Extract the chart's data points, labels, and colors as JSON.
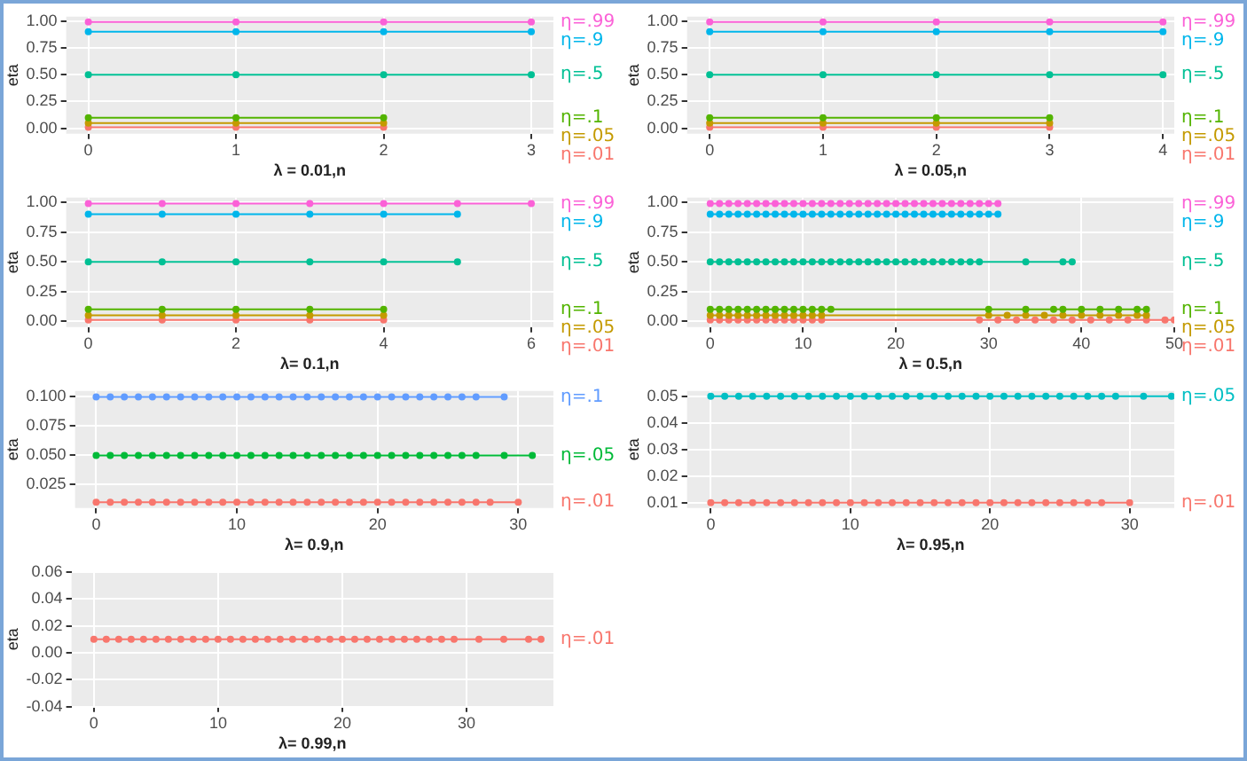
{
  "chart_data": [
    {
      "type": "line",
      "xlabel": "λ = 0.01,n",
      "ylabel": "eta",
      "xlim": [
        -0.15,
        3.15
      ],
      "xticks": [
        0,
        1,
        2,
        3
      ],
      "ylim": [
        -0.05,
        1.04
      ],
      "yticks": [
        {
          "value": 0,
          "label": "0.00"
        },
        {
          "value": 0.25,
          "label": "0.25"
        },
        {
          "value": 0.5,
          "label": "0.50"
        },
        {
          "value": 0.75,
          "label": "0.75"
        },
        {
          "value": 1,
          "label": "1.00"
        }
      ],
      "grid": true,
      "legend": false,
      "marker": "circle",
      "line_style": "solid",
      "series": [
        {
          "name": "η=.99",
          "color": "#fb61d7",
          "x": [
            0,
            1,
            2,
            3
          ],
          "values": [
            0.99,
            0.99,
            0.99,
            0.99
          ]
        },
        {
          "name": "η=.9",
          "color": "#00b6eb",
          "x": [
            0,
            1,
            2,
            3
          ],
          "values": [
            0.9,
            0.9,
            0.9,
            0.9
          ]
        },
        {
          "name": "η=.5",
          "color": "#00c094",
          "x": [
            0,
            1,
            2,
            3
          ],
          "values": [
            0.5,
            0.5,
            0.5,
            0.5
          ]
        },
        {
          "name": "η=.1",
          "color": "#53b400",
          "x": [
            0,
            1,
            2
          ],
          "values": [
            0.1,
            0.1,
            0.1
          ]
        },
        {
          "name": "η=.05",
          "color": "#c49a00",
          "x": [
            0,
            1,
            2
          ],
          "values": [
            0.05,
            0.05,
            0.05
          ]
        },
        {
          "name": "η=.01",
          "color": "#f8766d",
          "x": [
            0,
            1,
            2
          ],
          "values": [
            0.01,
            0.01,
            0.01
          ]
        }
      ]
    },
    {
      "type": "line",
      "xlabel": "λ = 0.05,n",
      "ylabel": "eta",
      "xlim": [
        -0.2,
        4.1
      ],
      "xticks": [
        0,
        1,
        2,
        3,
        4
      ],
      "ylim": [
        -0.05,
        1.04
      ],
      "yticks": [
        {
          "value": 0,
          "label": "0.00"
        },
        {
          "value": 0.25,
          "label": "0.25"
        },
        {
          "value": 0.5,
          "label": "0.50"
        },
        {
          "value": 0.75,
          "label": "0.75"
        },
        {
          "value": 1,
          "label": "1.00"
        }
      ],
      "grid": true,
      "legend": false,
      "marker": "circle",
      "line_style": "solid",
      "series": [
        {
          "name": "η=.99",
          "color": "#fb61d7",
          "x": [
            0,
            1,
            2,
            3,
            4
          ],
          "values": [
            0.99,
            0.99,
            0.99,
            0.99,
            0.99
          ]
        },
        {
          "name": "η=.9",
          "color": "#00b6eb",
          "x": [
            0,
            1,
            2,
            3,
            4
          ],
          "values": [
            0.9,
            0.9,
            0.9,
            0.9,
            0.9
          ]
        },
        {
          "name": "η=.5",
          "color": "#00c094",
          "x": [
            0,
            1,
            2,
            3,
            4
          ],
          "values": [
            0.5,
            0.5,
            0.5,
            0.5,
            0.5
          ]
        },
        {
          "name": "η=.1",
          "color": "#53b400",
          "x": [
            0,
            1,
            2,
            3
          ],
          "values": [
            0.1,
            0.1,
            0.1,
            0.1
          ]
        },
        {
          "name": "η=.05",
          "color": "#c49a00",
          "x": [
            0,
            1,
            2,
            3
          ],
          "values": [
            0.05,
            0.05,
            0.05,
            0.05
          ]
        },
        {
          "name": "η=.01",
          "color": "#f8766d",
          "x": [
            0,
            1,
            2,
            3
          ],
          "values": [
            0.01,
            0.01,
            0.01,
            0.01
          ]
        }
      ]
    },
    {
      "type": "line",
      "xlabel": "λ= 0.1,n",
      "ylabel": "eta",
      "xlim": [
        -0.3,
        6.3
      ],
      "xticks": [
        0,
        2,
        4,
        6
      ],
      "ylim": [
        -0.05,
        1.04
      ],
      "yticks": [
        {
          "value": 0,
          "label": "0.00"
        },
        {
          "value": 0.25,
          "label": "0.25"
        },
        {
          "value": 0.5,
          "label": "0.50"
        },
        {
          "value": 0.75,
          "label": "0.75"
        },
        {
          "value": 1,
          "label": "1.00"
        }
      ],
      "grid": true,
      "legend": false,
      "marker": "circle",
      "line_style": "solid",
      "series": [
        {
          "name": "η=.99",
          "color": "#fb61d7",
          "x": [
            0,
            1,
            2,
            3,
            4,
            5,
            6
          ],
          "values": [
            0.99,
            0.99,
            0.99,
            0.99,
            0.99,
            0.99,
            0.99
          ]
        },
        {
          "name": "η=.9",
          "color": "#00b6eb",
          "x": [
            0,
            1,
            2,
            3,
            4,
            5
          ],
          "values": [
            0.9,
            0.9,
            0.9,
            0.9,
            0.9,
            0.9
          ]
        },
        {
          "name": "η=.5",
          "color": "#00c094",
          "x": [
            0,
            1,
            2,
            3,
            4,
            5
          ],
          "values": [
            0.5,
            0.5,
            0.5,
            0.5,
            0.5,
            0.5
          ]
        },
        {
          "name": "η=.1",
          "color": "#53b400",
          "x": [
            0,
            1,
            2,
            3,
            4
          ],
          "values": [
            0.1,
            0.1,
            0.1,
            0.1,
            0.1
          ]
        },
        {
          "name": "η=.05",
          "color": "#c49a00",
          "x": [
            0,
            1,
            2,
            3,
            4
          ],
          "values": [
            0.05,
            0.05,
            0.05,
            0.05,
            0.05
          ]
        },
        {
          "name": "η=.01",
          "color": "#f8766d",
          "x": [
            0,
            1,
            2,
            3,
            4
          ],
          "values": [
            0.01,
            0.01,
            0.01,
            0.01,
            0.01
          ]
        }
      ]
    },
    {
      "type": "line",
      "xlabel": "λ = 0.5,n",
      "ylabel": "eta",
      "xlim": [
        -2.5,
        50
      ],
      "xticks": [
        0,
        10,
        20,
        30,
        40,
        50
      ],
      "ylim": [
        -0.05,
        1.04
      ],
      "yticks": [
        {
          "value": 0,
          "label": "0.00"
        },
        {
          "value": 0.25,
          "label": "0.25"
        },
        {
          "value": 0.5,
          "label": "0.50"
        },
        {
          "value": 0.75,
          "label": "0.75"
        },
        {
          "value": 1,
          "label": "1.00"
        }
      ],
      "grid": true,
      "legend": false,
      "marker": "circle",
      "line_style": "solid",
      "series": [
        {
          "name": "η=.99",
          "color": "#fb61d7",
          "x": [
            0,
            1,
            2,
            3,
            4,
            5,
            6,
            7,
            8,
            9,
            10,
            11,
            12,
            13,
            14,
            15,
            16,
            17,
            18,
            19,
            20,
            21,
            22,
            23,
            24,
            25,
            26,
            27,
            28,
            29,
            30,
            31
          ],
          "values": [
            0.99,
            0.99,
            0.99,
            0.99,
            0.99,
            0.99,
            0.99,
            0.99,
            0.99,
            0.99,
            0.99,
            0.99,
            0.99,
            0.99,
            0.99,
            0.99,
            0.99,
            0.99,
            0.99,
            0.99,
            0.99,
            0.99,
            0.99,
            0.99,
            0.99,
            0.99,
            0.99,
            0.99,
            0.99,
            0.99,
            0.99,
            0.99
          ]
        },
        {
          "name": "η=.9",
          "color": "#00b6eb",
          "x": [
            0,
            1,
            2,
            3,
            4,
            5,
            6,
            7,
            8,
            9,
            10,
            11,
            12,
            13,
            14,
            15,
            16,
            17,
            18,
            19,
            20,
            21,
            22,
            23,
            24,
            25,
            26,
            27,
            28,
            29,
            30,
            31
          ],
          "values": [
            0.9,
            0.9,
            0.9,
            0.9,
            0.9,
            0.9,
            0.9,
            0.9,
            0.9,
            0.9,
            0.9,
            0.9,
            0.9,
            0.9,
            0.9,
            0.9,
            0.9,
            0.9,
            0.9,
            0.9,
            0.9,
            0.9,
            0.9,
            0.9,
            0.9,
            0.9,
            0.9,
            0.9,
            0.9,
            0.9,
            0.9,
            0.9
          ]
        },
        {
          "name": "η=.5",
          "color": "#00c094",
          "x": [
            0,
            1,
            2,
            3,
            4,
            5,
            6,
            7,
            8,
            9,
            10,
            11,
            12,
            13,
            14,
            15,
            16,
            17,
            18,
            19,
            20,
            21,
            22,
            23,
            24,
            25,
            26,
            27,
            28,
            29,
            34,
            38,
            39
          ],
          "values": [
            0.5,
            0.5,
            0.5,
            0.5,
            0.5,
            0.5,
            0.5,
            0.5,
            0.5,
            0.5,
            0.5,
            0.5,
            0.5,
            0.5,
            0.5,
            0.5,
            0.5,
            0.5,
            0.5,
            0.5,
            0.5,
            0.5,
            0.5,
            0.5,
            0.5,
            0.5,
            0.5,
            0.5,
            0.5,
            0.5,
            0.5,
            0.5,
            0.5
          ]
        },
        {
          "name": "η=.1",
          "color": "#53b400",
          "x": [
            0,
            1,
            2,
            3,
            4,
            5,
            6,
            7,
            8,
            9,
            10,
            11,
            12,
            13,
            30,
            34,
            37,
            38,
            40,
            42,
            44,
            46,
            47
          ],
          "values": [
            0.1,
            0.1,
            0.1,
            0.1,
            0.1,
            0.1,
            0.1,
            0.1,
            0.1,
            0.1,
            0.1,
            0.1,
            0.1,
            0.1,
            0.1,
            0.1,
            0.1,
            0.1,
            0.1,
            0.1,
            0.1,
            0.1,
            0.1
          ]
        },
        {
          "name": "η=.05",
          "color": "#c49a00",
          "x": [
            0,
            1,
            2,
            3,
            4,
            5,
            6,
            7,
            8,
            9,
            10,
            11,
            12,
            30,
            32,
            34,
            36,
            38,
            40,
            42,
            44,
            46,
            47
          ],
          "values": [
            0.05,
            0.05,
            0.05,
            0.05,
            0.05,
            0.05,
            0.05,
            0.05,
            0.05,
            0.05,
            0.05,
            0.05,
            0.05,
            0.05,
            0.05,
            0.05,
            0.05,
            0.05,
            0.05,
            0.05,
            0.05,
            0.05,
            0.05
          ]
        },
        {
          "name": "η=.01",
          "color": "#f8766d",
          "x": [
            0,
            1,
            2,
            3,
            4,
            5,
            6,
            7,
            8,
            9,
            10,
            11,
            12,
            29,
            31,
            33,
            35,
            37,
            39,
            41,
            43,
            45,
            47,
            49,
            50
          ],
          "values": [
            0.01,
            0.01,
            0.01,
            0.01,
            0.01,
            0.01,
            0.01,
            0.01,
            0.01,
            0.01,
            0.01,
            0.01,
            0.01,
            0.01,
            0.01,
            0.01,
            0.01,
            0.01,
            0.01,
            0.01,
            0.01,
            0.01,
            0.01,
            0.01,
            0.01
          ]
        }
      ]
    },
    {
      "type": "line",
      "xlabel": "λ= 0.9,n",
      "ylabel": "eta",
      "xlim": [
        -1.5,
        32.5
      ],
      "xticks": [
        0,
        10,
        20,
        30
      ],
      "ylim": [
        0.005,
        0.105
      ],
      "yticks": [
        {
          "value": 0.025,
          "label": "0.025"
        },
        {
          "value": 0.05,
          "label": "0.050"
        },
        {
          "value": 0.075,
          "label": "0.075"
        },
        {
          "value": 0.1,
          "label": "0.100"
        }
      ],
      "grid": true,
      "legend": false,
      "marker": "circle",
      "line_style": "solid",
      "series": [
        {
          "name": "η=.1",
          "color": "#619cff",
          "x": [
            0,
            1,
            2,
            3,
            4,
            5,
            6,
            7,
            8,
            9,
            10,
            11,
            12,
            13,
            14,
            15,
            16,
            17,
            18,
            19,
            20,
            21,
            22,
            23,
            24,
            25,
            26,
            27,
            29
          ],
          "values": [
            0.1,
            0.1,
            0.1,
            0.1,
            0.1,
            0.1,
            0.1,
            0.1,
            0.1,
            0.1,
            0.1,
            0.1,
            0.1,
            0.1,
            0.1,
            0.1,
            0.1,
            0.1,
            0.1,
            0.1,
            0.1,
            0.1,
            0.1,
            0.1,
            0.1,
            0.1,
            0.1,
            0.1,
            0.1
          ]
        },
        {
          "name": "η=.05",
          "color": "#00ba38",
          "x": [
            0,
            1,
            2,
            3,
            4,
            5,
            6,
            7,
            8,
            9,
            10,
            11,
            12,
            13,
            14,
            15,
            16,
            17,
            18,
            19,
            20,
            21,
            22,
            23,
            24,
            25,
            26,
            27,
            29,
            31
          ],
          "values": [
            0.05,
            0.05,
            0.05,
            0.05,
            0.05,
            0.05,
            0.05,
            0.05,
            0.05,
            0.05,
            0.05,
            0.05,
            0.05,
            0.05,
            0.05,
            0.05,
            0.05,
            0.05,
            0.05,
            0.05,
            0.05,
            0.05,
            0.05,
            0.05,
            0.05,
            0.05,
            0.05,
            0.05,
            0.05,
            0.05
          ]
        },
        {
          "name": "η=.01",
          "color": "#f8766d",
          "x": [
            0,
            1,
            2,
            3,
            4,
            5,
            6,
            7,
            8,
            9,
            10,
            11,
            12,
            13,
            14,
            15,
            16,
            17,
            18,
            19,
            20,
            21,
            22,
            23,
            24,
            25,
            26,
            27,
            28,
            30
          ],
          "values": [
            0.01,
            0.01,
            0.01,
            0.01,
            0.01,
            0.01,
            0.01,
            0.01,
            0.01,
            0.01,
            0.01,
            0.01,
            0.01,
            0.01,
            0.01,
            0.01,
            0.01,
            0.01,
            0.01,
            0.01,
            0.01,
            0.01,
            0.01,
            0.01,
            0.01,
            0.01,
            0.01,
            0.01,
            0.01,
            0.01
          ]
        }
      ]
    },
    {
      "type": "line",
      "xlabel": "λ= 0.95,n",
      "ylabel": "eta",
      "xlim": [
        -1.7,
        33.2
      ],
      "xticks": [
        0,
        10,
        20,
        30
      ],
      "ylim": [
        0.008,
        0.052
      ],
      "yticks": [
        {
          "value": 0.01,
          "label": "0.01"
        },
        {
          "value": 0.02,
          "label": "0.02"
        },
        {
          "value": 0.03,
          "label": "0.03"
        },
        {
          "value": 0.04,
          "label": "0.04"
        },
        {
          "value": 0.05,
          "label": "0.05"
        }
      ],
      "grid": true,
      "legend": false,
      "marker": "circle",
      "line_style": "solid",
      "series": [
        {
          "name": "η=.05",
          "color": "#00bfc4",
          "x": [
            0,
            1,
            2,
            3,
            4,
            5,
            6,
            7,
            8,
            9,
            10,
            11,
            12,
            13,
            14,
            15,
            16,
            17,
            18,
            19,
            20,
            21,
            22,
            23,
            24,
            25,
            26,
            27,
            28,
            29,
            31,
            33
          ],
          "values": [
            0.05,
            0.05,
            0.05,
            0.05,
            0.05,
            0.05,
            0.05,
            0.05,
            0.05,
            0.05,
            0.05,
            0.05,
            0.05,
            0.05,
            0.05,
            0.05,
            0.05,
            0.05,
            0.05,
            0.05,
            0.05,
            0.05,
            0.05,
            0.05,
            0.05,
            0.05,
            0.05,
            0.05,
            0.05,
            0.05,
            0.05,
            0.05
          ]
        },
        {
          "name": "η=.01",
          "color": "#f8766d",
          "x": [
            0,
            1,
            2,
            3,
            4,
            5,
            6,
            7,
            8,
            9,
            10,
            11,
            12,
            13,
            14,
            15,
            16,
            17,
            18,
            19,
            20,
            21,
            22,
            23,
            24,
            25,
            26,
            27,
            28,
            30
          ],
          "values": [
            0.01,
            0.01,
            0.01,
            0.01,
            0.01,
            0.01,
            0.01,
            0.01,
            0.01,
            0.01,
            0.01,
            0.01,
            0.01,
            0.01,
            0.01,
            0.01,
            0.01,
            0.01,
            0.01,
            0.01,
            0.01,
            0.01,
            0.01,
            0.01,
            0.01,
            0.01,
            0.01,
            0.01,
            0.01,
            0.01
          ]
        }
      ]
    },
    {
      "type": "line",
      "xlabel": "λ= 0.99,n",
      "ylabel": "eta",
      "xlim": [
        -1.8,
        37
      ],
      "xticks": [
        0,
        10,
        20,
        30
      ],
      "ylim": [
        -0.04,
        0.06
      ],
      "yticks": [
        {
          "value": -0.04,
          "label": "-0.04"
        },
        {
          "value": -0.02,
          "label": "-0.02"
        },
        {
          "value": 0,
          "label": "0.00"
        },
        {
          "value": 0.02,
          "label": "0.02"
        },
        {
          "value": 0.04,
          "label": "0.04"
        },
        {
          "value": 0.06,
          "label": "0.06"
        }
      ],
      "grid": true,
      "legend": false,
      "marker": "circle",
      "line_style": "solid",
      "series": [
        {
          "name": "η=.01",
          "color": "#f8766d",
          "x": [
            0,
            1,
            2,
            3,
            4,
            5,
            6,
            7,
            8,
            9,
            10,
            11,
            12,
            13,
            14,
            15,
            16,
            17,
            18,
            19,
            20,
            21,
            22,
            23,
            24,
            25,
            26,
            27,
            28,
            29,
            31,
            33,
            35,
            36
          ],
          "values": [
            0.01,
            0.01,
            0.01,
            0.01,
            0.01,
            0.01,
            0.01,
            0.01,
            0.01,
            0.01,
            0.01,
            0.01,
            0.01,
            0.01,
            0.01,
            0.01,
            0.01,
            0.01,
            0.01,
            0.01,
            0.01,
            0.01,
            0.01,
            0.01,
            0.01,
            0.01,
            0.01,
            0.01,
            0.01,
            0.01,
            0.01,
            0.01,
            0.01,
            0.01
          ]
        }
      ]
    }
  ]
}
